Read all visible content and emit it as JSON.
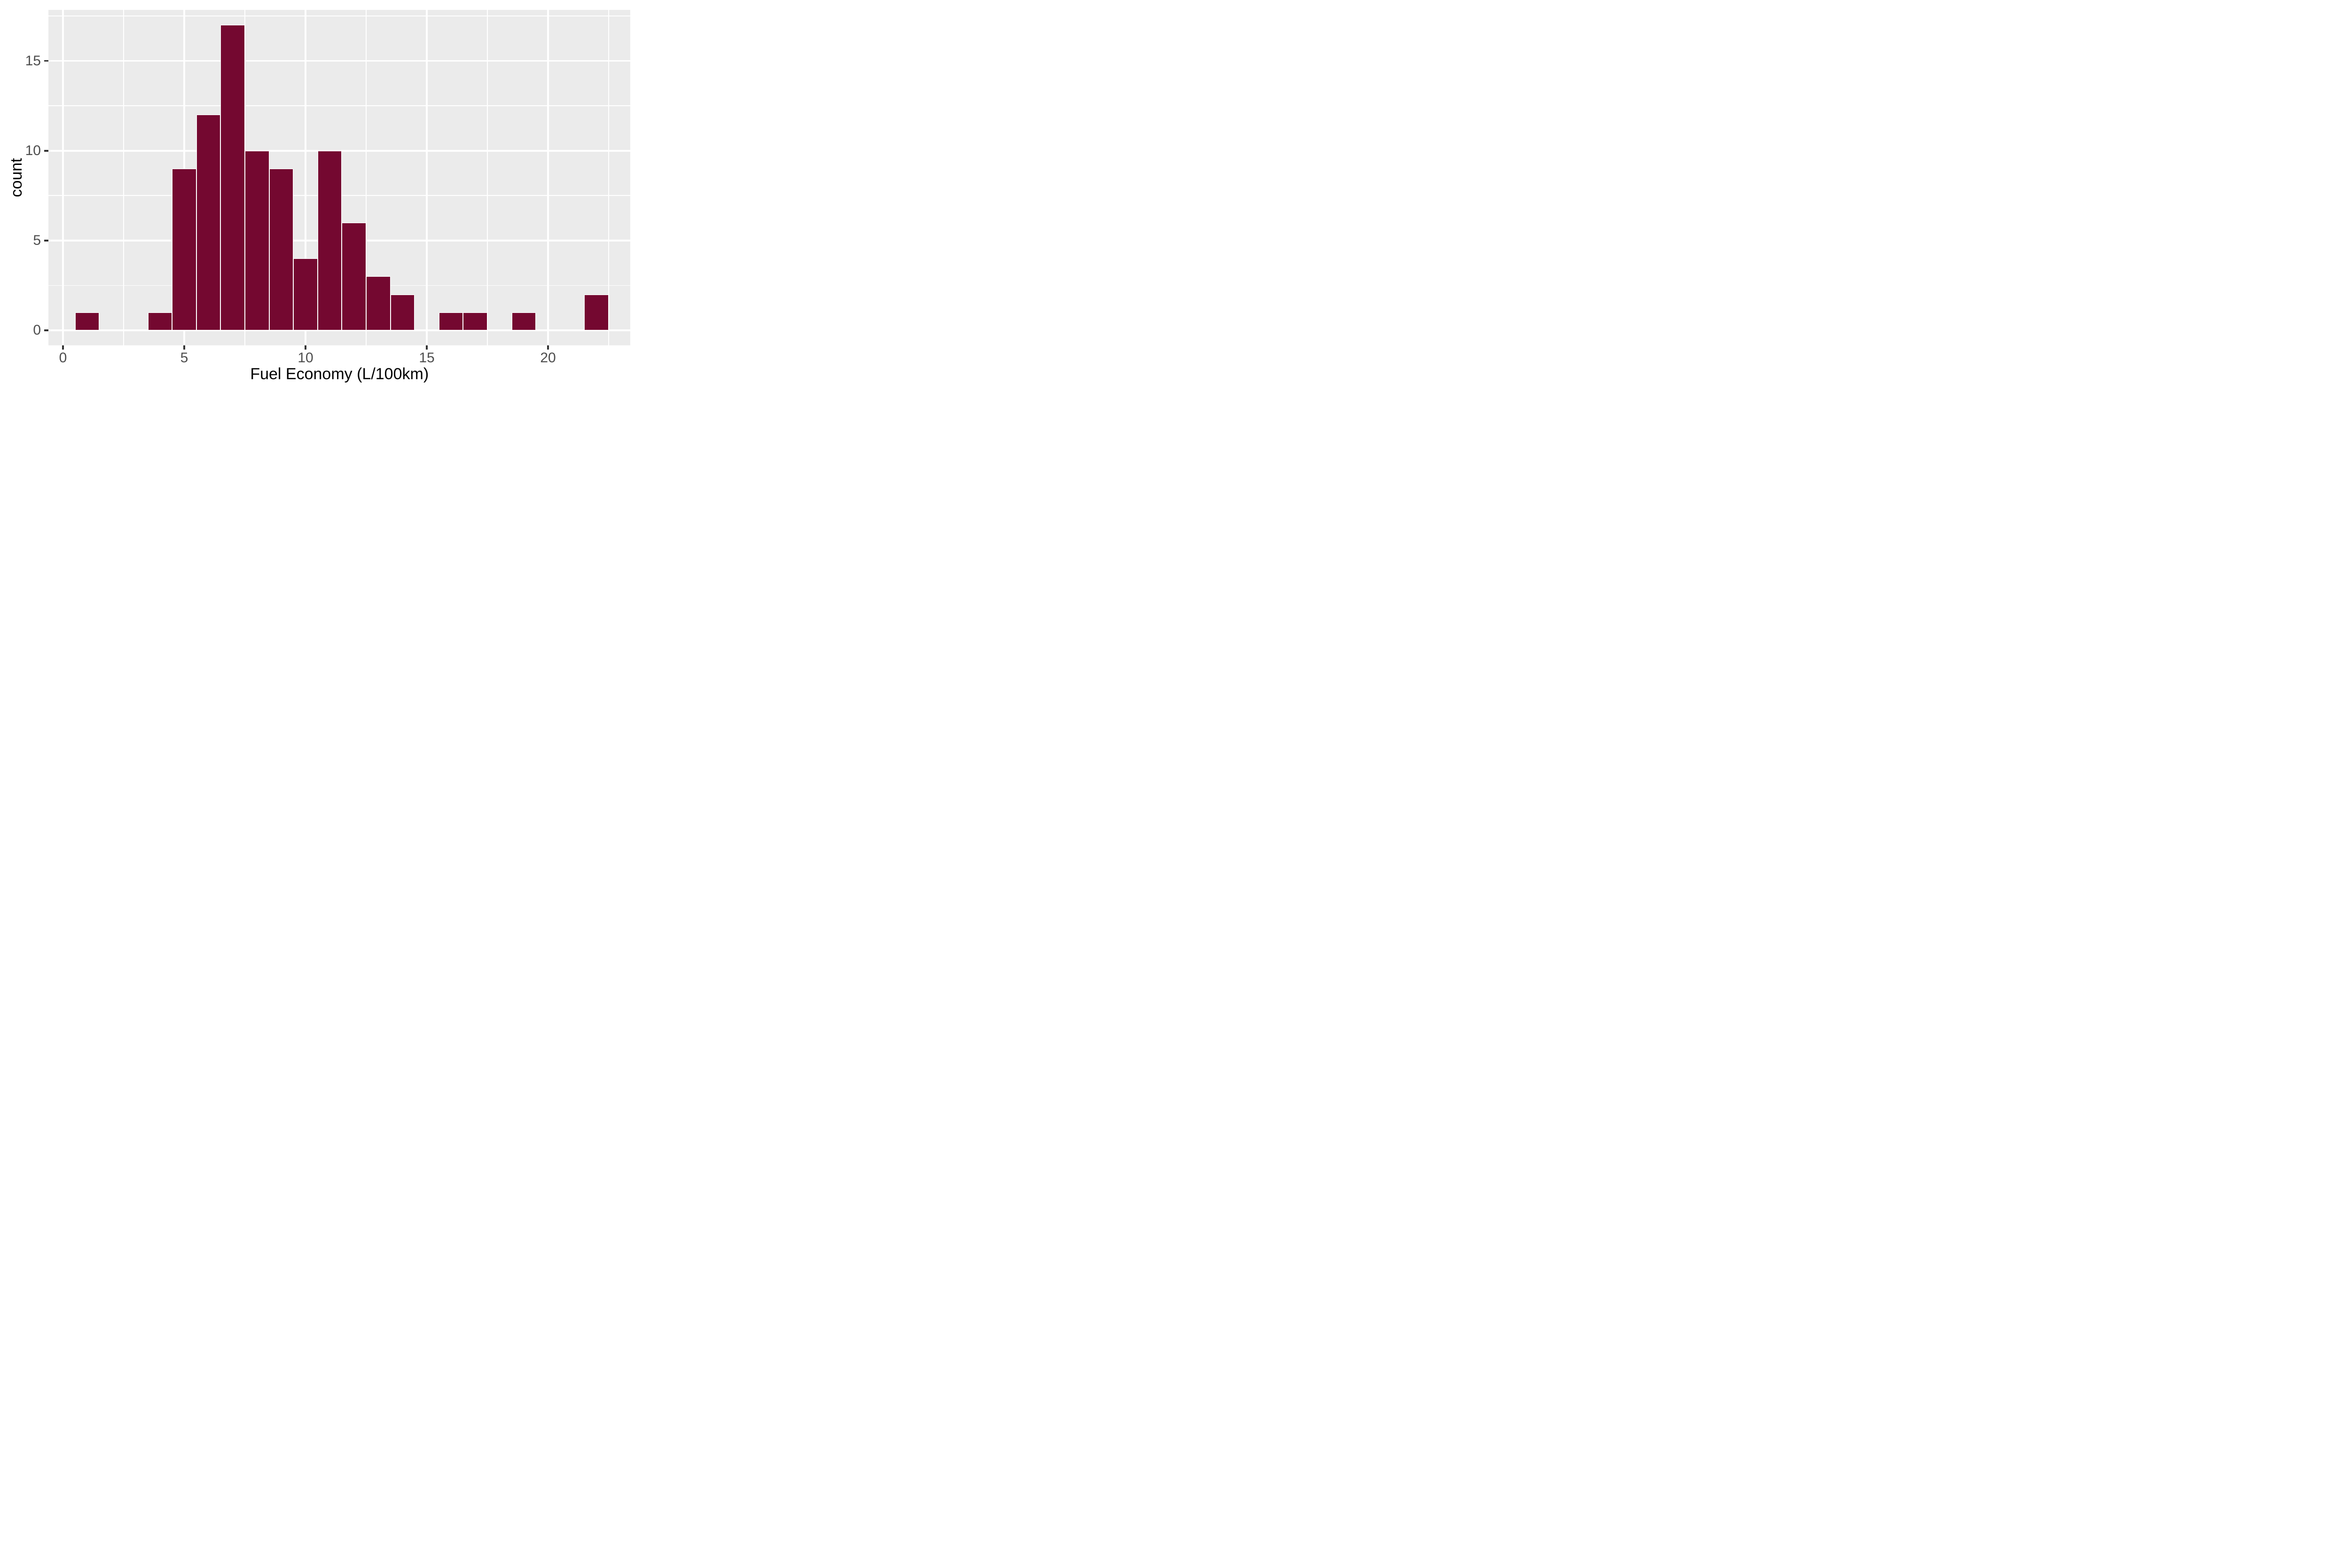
{
  "chart_data": {
    "type": "bar",
    "subtype": "histogram",
    "xlabel": "Fuel Economy (L/100km)",
    "ylabel": "count",
    "bin_width": 1,
    "bars": [
      {
        "center": 1,
        "count": 1
      },
      {
        "center": 4,
        "count": 1
      },
      {
        "center": 5,
        "count": 9
      },
      {
        "center": 6,
        "count": 12
      },
      {
        "center": 7,
        "count": 17
      },
      {
        "center": 8,
        "count": 10
      },
      {
        "center": 9,
        "count": 9
      },
      {
        "center": 10,
        "count": 4
      },
      {
        "center": 11,
        "count": 10
      },
      {
        "center": 12,
        "count": 6
      },
      {
        "center": 13,
        "count": 3
      },
      {
        "center": 14,
        "count": 2
      },
      {
        "center": 16,
        "count": 1
      },
      {
        "center": 17,
        "count": 1
      },
      {
        "center": 19,
        "count": 1
      },
      {
        "center": 22,
        "count": 2
      }
    ],
    "total_count": 89,
    "x_ticks": [
      {
        "value": 0,
        "label": "0"
      },
      {
        "value": 5,
        "label": "5"
      },
      {
        "value": 10,
        "label": "10"
      },
      {
        "value": 15,
        "label": "15"
      },
      {
        "value": 20,
        "label": "20"
      }
    ],
    "y_ticks": [
      {
        "value": 0,
        "label": "0"
      },
      {
        "value": 5,
        "label": "5"
      },
      {
        "value": 10,
        "label": "10"
      },
      {
        "value": 15,
        "label": "15"
      }
    ],
    "x_minor_gridlines": [
      2.5,
      7.5,
      12.5,
      17.5,
      22.5
    ],
    "y_minor_gridlines": [
      2.5,
      7.5,
      12.5,
      17.5
    ],
    "xlim": [
      -0.6,
      23.4
    ],
    "ylim": [
      -0.85,
      17.85
    ],
    "grid": true,
    "legend": "none",
    "colors": {
      "bar_fill": "#740830",
      "bar_stroke": "#FFFFFF",
      "panel_background": "#EBEBEB",
      "gridline": "#FFFFFF",
      "tick_mark": "#333333",
      "tick_label": "#4D4D4D",
      "axis_title": "#000000",
      "figure_background": "#FFFFFF"
    }
  }
}
